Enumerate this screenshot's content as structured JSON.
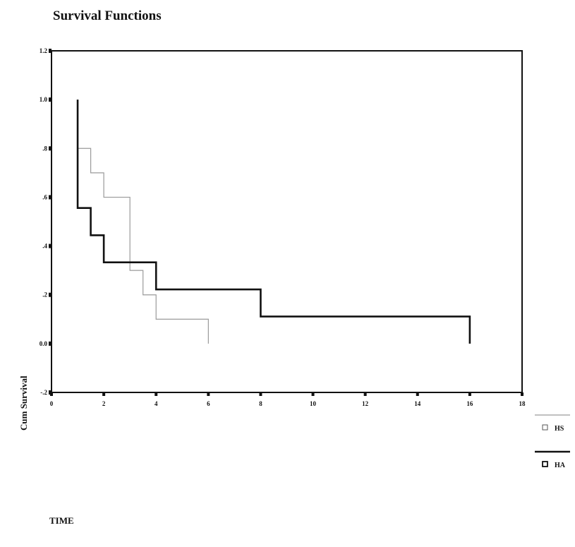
{
  "chart_data": {
    "type": "line",
    "title": "Survival Functions",
    "xlabel": "TIME",
    "ylabel": "Cum Survival",
    "xlim": [
      0,
      18
    ],
    "ylim": [
      -0.2,
      1.2
    ],
    "x_ticks": [
      0,
      2,
      4,
      6,
      8,
      10,
      12,
      14,
      16,
      18
    ],
    "x_tick_labels": [
      "0",
      "2",
      "4",
      "6",
      "8",
      "10",
      "12",
      "14",
      "16",
      "18"
    ],
    "y_ticks": [
      -0.2,
      0.0,
      0.2,
      0.4,
      0.6,
      0.8,
      1.0,
      1.2
    ],
    "y_tick_labels": [
      "-.2",
      "0.0",
      ".2",
      ".4",
      ".6",
      ".8",
      "1.0",
      "1.2"
    ],
    "grid": false,
    "legend_position": "right",
    "series": [
      {
        "name": "HS",
        "color": "#9a9a9a",
        "stroke": "thin",
        "step_points": [
          [
            1,
            0.8
          ],
          [
            1.5,
            0.7
          ],
          [
            2,
            0.6
          ],
          [
            3,
            0.3
          ],
          [
            3.5,
            0.2
          ],
          [
            4,
            0.1
          ],
          [
            6,
            0.0
          ]
        ]
      },
      {
        "name": "HA",
        "color": "#111111",
        "stroke": "thick",
        "step_points": [
          [
            1,
            1.0
          ],
          [
            1,
            0.556
          ],
          [
            1.5,
            0.444
          ],
          [
            2,
            0.333
          ],
          [
            4,
            0.222
          ],
          [
            8,
            0.111
          ],
          [
            16,
            0.0
          ]
        ]
      }
    ]
  }
}
